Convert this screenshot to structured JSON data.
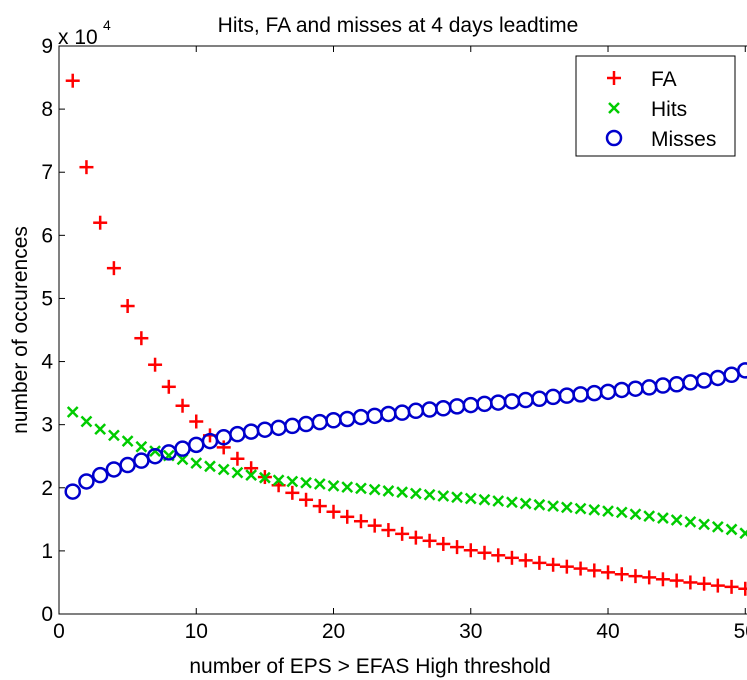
{
  "chart_data": {
    "type": "scatter",
    "title": "Hits, FA and misses at 4 days leadtime",
    "xlabel": "number of EPS > EFAS High threshold",
    "ylabel": "number of occurences",
    "y_exponent_label": "x 10",
    "y_exponent_power": "4",
    "y_scale_factor": 10000,
    "xlim": [
      0,
      51
    ],
    "ylim": [
      0,
      90000
    ],
    "x_ticks": [
      0,
      10,
      20,
      30,
      40,
      50
    ],
    "y_ticks": [
      0,
      1,
      2,
      3,
      4,
      5,
      6,
      7,
      8,
      9
    ],
    "grid": false,
    "legend_position": "top-right",
    "x": [
      1,
      2,
      3,
      4,
      5,
      6,
      7,
      8,
      9,
      10,
      11,
      12,
      13,
      14,
      15,
      16,
      17,
      18,
      19,
      20,
      21,
      22,
      23,
      24,
      25,
      26,
      27,
      28,
      29,
      30,
      31,
      32,
      33,
      34,
      35,
      36,
      37,
      38,
      39,
      40,
      41,
      42,
      43,
      44,
      45,
      46,
      47,
      48,
      49,
      50,
      51
    ],
    "series": [
      {
        "name": "FA",
        "marker": "plus",
        "color": "#ff0000",
        "values": [
          84500,
          70800,
          62000,
          54800,
          48800,
          43700,
          39500,
          36000,
          33000,
          30500,
          28300,
          26400,
          24600,
          23100,
          21700,
          20400,
          19200,
          18100,
          17100,
          16200,
          15400,
          14700,
          14000,
          13300,
          12700,
          12100,
          11600,
          11100,
          10600,
          10100,
          9700,
          9300,
          8900,
          8500,
          8100,
          7800,
          7500,
          7200,
          6900,
          6600,
          6300,
          6000,
          5800,
          5500,
          5300,
          5000,
          4800,
          4500,
          4300,
          4000,
          3500
        ]
      },
      {
        "name": "Hits",
        "marker": "x",
        "color": "#00cc00",
        "values": [
          32000,
          30500,
          29300,
          28300,
          27400,
          26500,
          25800,
          25100,
          24500,
          23900,
          23400,
          22900,
          22400,
          22000,
          21600,
          21200,
          21000,
          20800,
          20600,
          20300,
          20100,
          19900,
          19700,
          19500,
          19300,
          19100,
          18900,
          18700,
          18500,
          18300,
          18100,
          17900,
          17700,
          17500,
          17300,
          17100,
          16900,
          16700,
          16500,
          16300,
          16100,
          15800,
          15500,
          15200,
          14900,
          14600,
          14200,
          13800,
          13400,
          12800,
          11400
        ]
      },
      {
        "name": "Misses",
        "marker": "circle",
        "color": "#0000cc",
        "values": [
          19400,
          21000,
          22000,
          22900,
          23600,
          24300,
          25000,
          25600,
          26200,
          26800,
          27400,
          28000,
          28500,
          28900,
          29200,
          29500,
          29800,
          30100,
          30400,
          30700,
          30900,
          31200,
          31400,
          31700,
          31900,
          32200,
          32400,
          32600,
          32900,
          33100,
          33300,
          33500,
          33700,
          33900,
          34100,
          34400,
          34600,
          34800,
          35000,
          35200,
          35500,
          35700,
          35900,
          36200,
          36400,
          36700,
          37000,
          37400,
          37900,
          38600,
          40200
        ]
      }
    ]
  }
}
